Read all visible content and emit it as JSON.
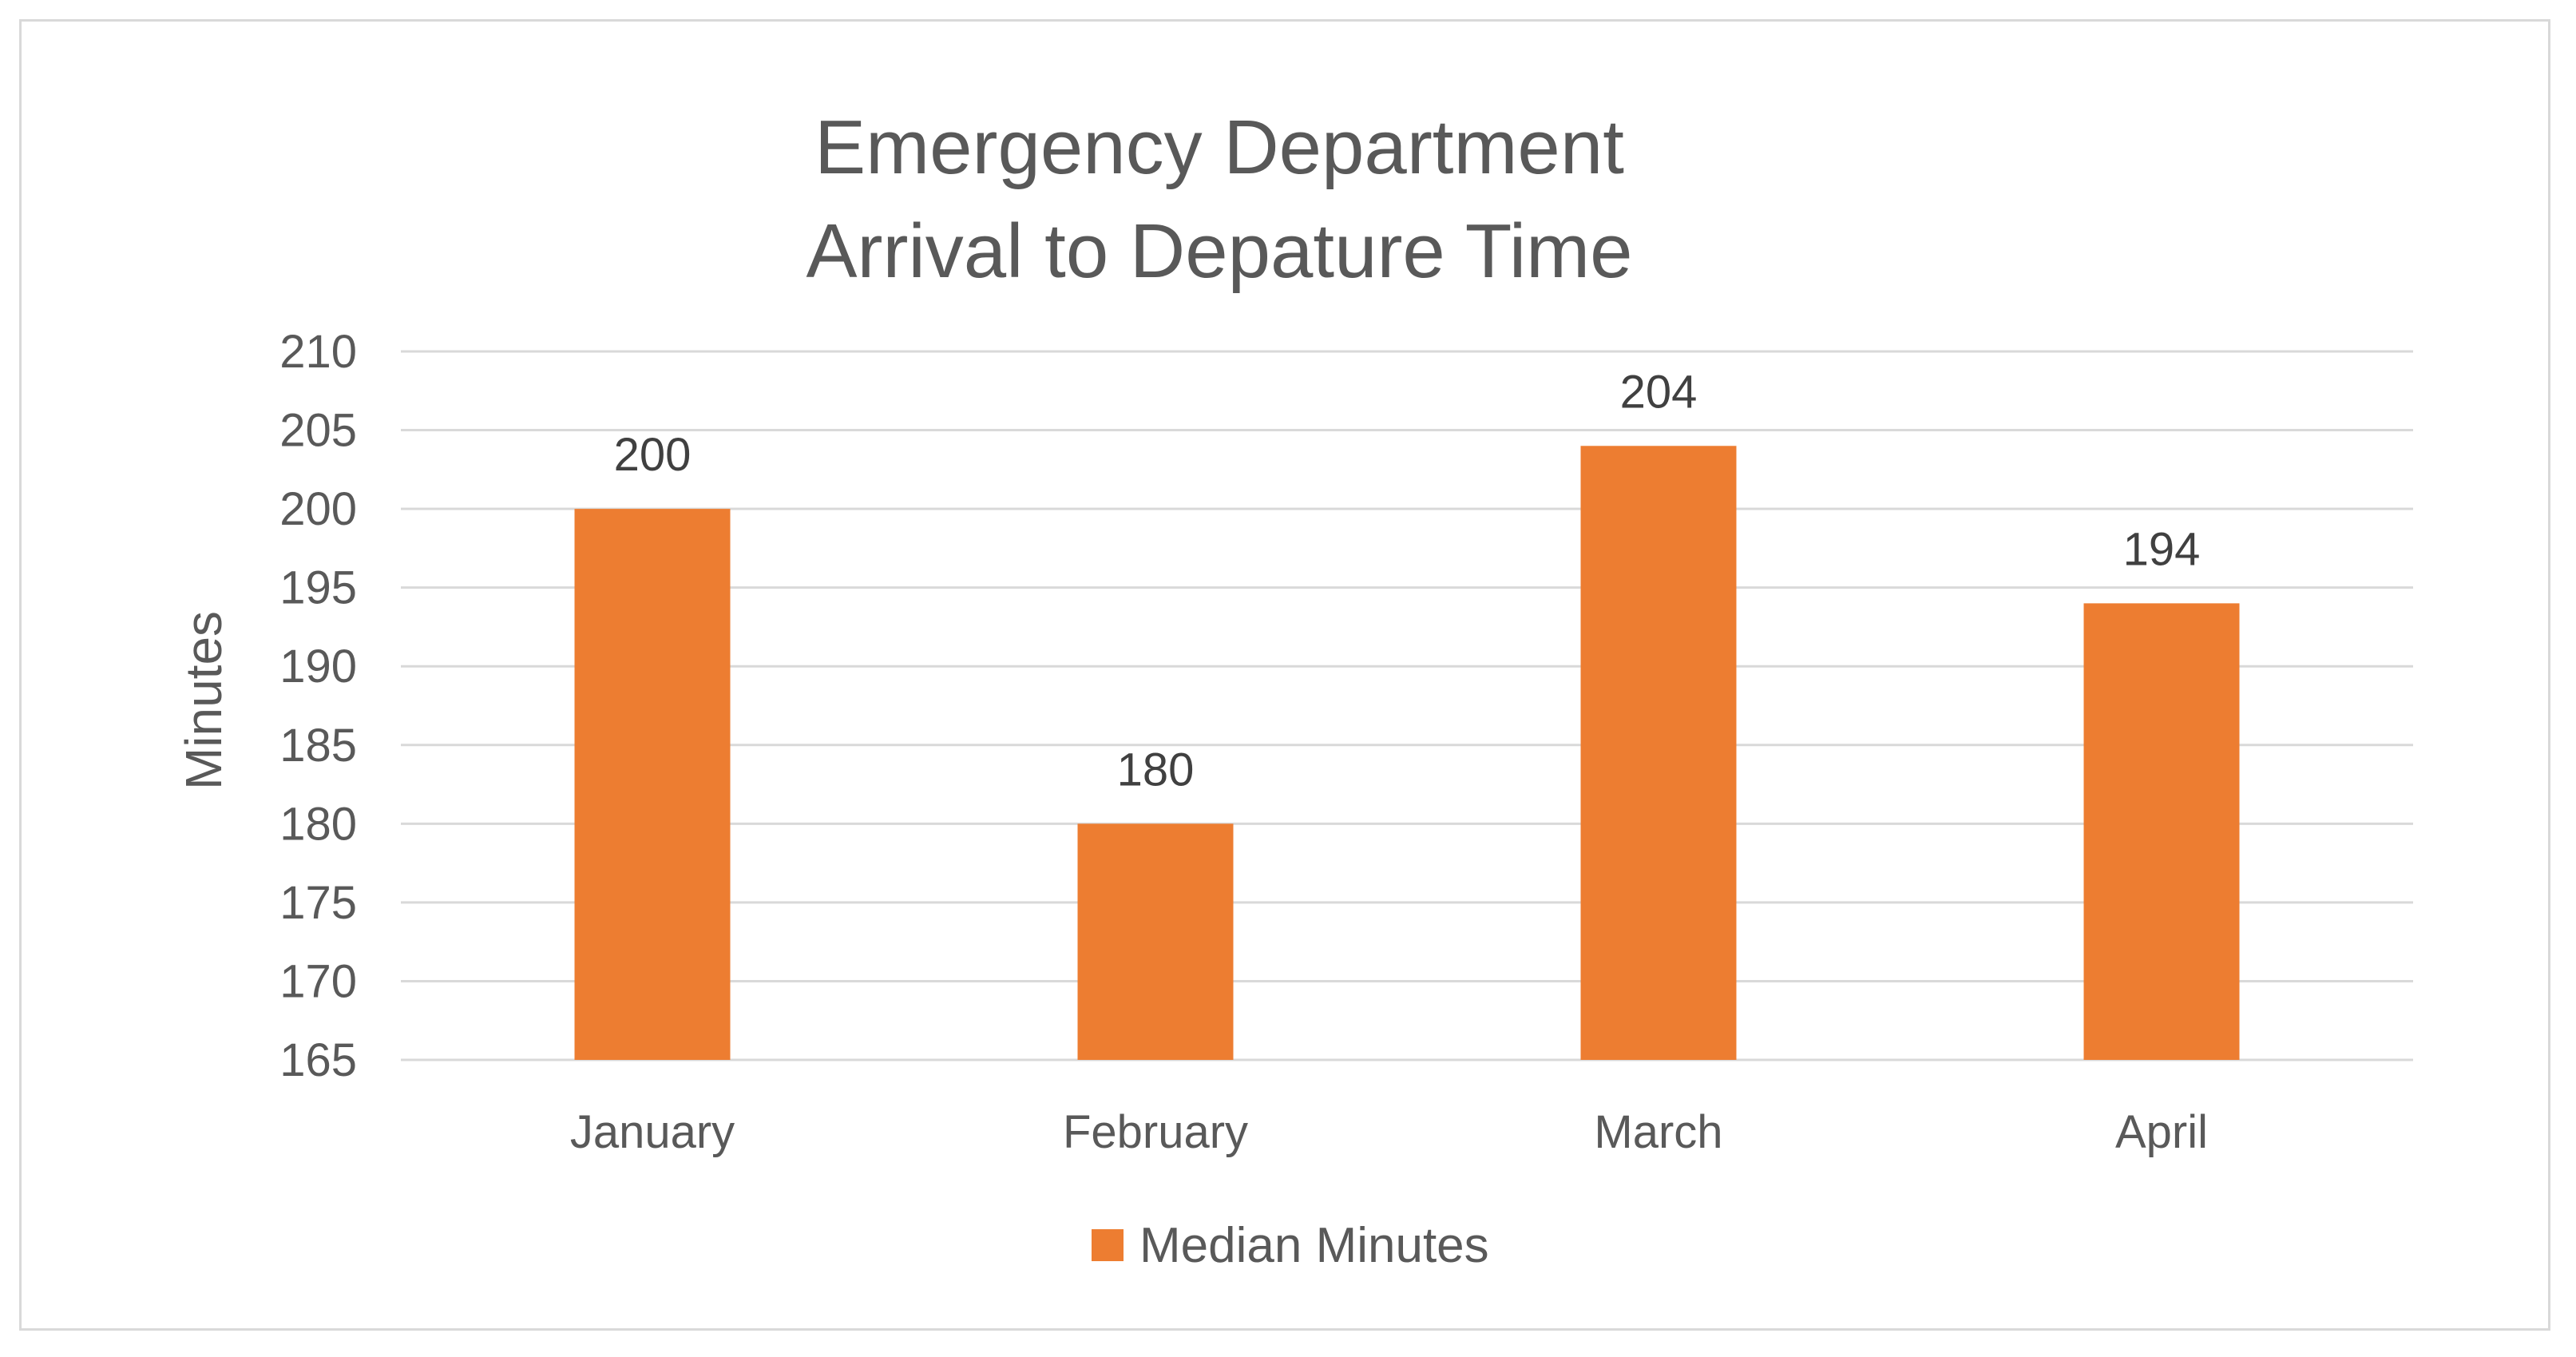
{
  "chart_data": {
    "type": "bar",
    "title_lines": [
      "Emergency Department",
      "Arrival to Depature Time"
    ],
    "ylabel": "Minutes",
    "xlabel": "",
    "categories": [
      "January",
      "February",
      "March",
      "April"
    ],
    "series": [
      {
        "name": "Median Minutes",
        "values": [
          200,
          180,
          204,
          194
        ],
        "color": "#ED7D31"
      }
    ],
    "ylim": [
      165,
      210
    ],
    "yticks": [
      165,
      170,
      175,
      180,
      185,
      190,
      195,
      200,
      205,
      210
    ],
    "grid": true,
    "data_labels": true,
    "legend_position": "bottom",
    "gridline_color": "#d9d9d9"
  }
}
